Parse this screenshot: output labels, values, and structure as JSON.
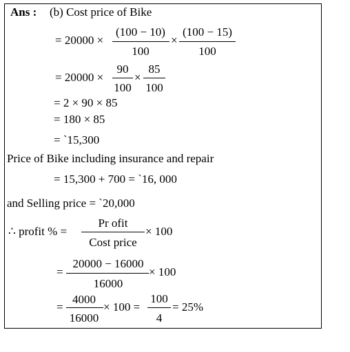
{
  "answer": {
    "label": "Ans :",
    "heading": "(b) Cost price of Bike",
    "step1": {
      "lead": "= 20000 ×",
      "frac1": {
        "num": "(100 − 10)",
        "den": "100"
      },
      "times": "×",
      "frac2": {
        "num": "(100 − 15)",
        "den": "100"
      }
    },
    "step2": {
      "lead": "= 20000 ×",
      "frac1": {
        "num": "90",
        "den": "100"
      },
      "times": "×",
      "frac2": {
        "num": "85",
        "den": "100"
      }
    },
    "step3": "= 2 × 90 × 85",
    "step4": "= 180 × 85",
    "step5": "= `15,300",
    "insurance_text": "Price of Bike including insurance and repair",
    "insurance_calc": "= 15,300 + 700 = `16, 000",
    "selling_price": "and Selling price = `20,000",
    "profit": {
      "lead": "∴ profit % =",
      "frac": {
        "num": "Pr ofit",
        "den": "Cost price"
      },
      "tail": "× 100"
    },
    "profit2": {
      "lead": "=",
      "frac": {
        "num": "20000 − 16000",
        "den": "16000"
      },
      "tail": "× 100"
    },
    "profit3": {
      "lead": "=",
      "frac1": {
        "num": "4000",
        "den": "16000"
      },
      "mid": "× 100 =",
      "frac2": {
        "num": "100",
        "den": "4"
      },
      "result": "= 25%"
    }
  }
}
